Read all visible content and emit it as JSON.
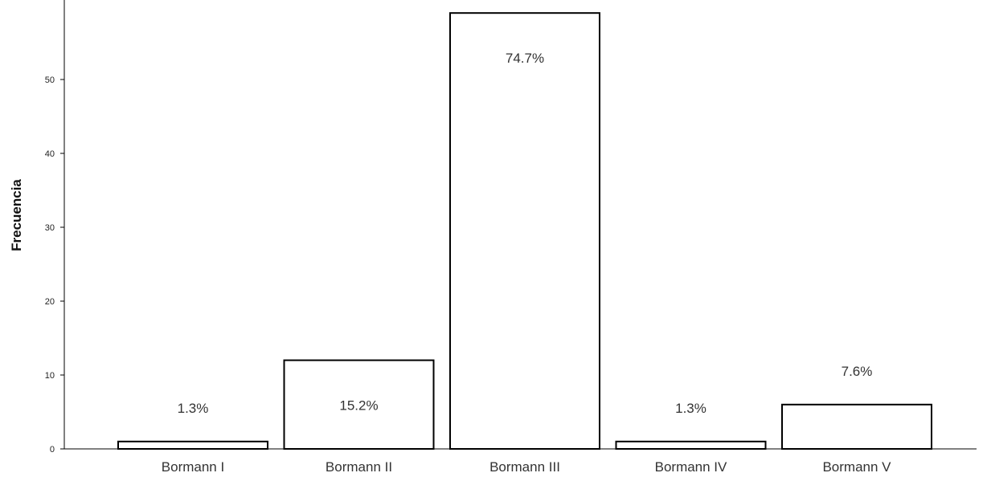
{
  "chart_data": {
    "type": "bar",
    "ylabel": "Frecuencia",
    "xlabel": "",
    "categories": [
      "Bormann I",
      "Bormann II",
      "Bormann III",
      "Bormann IV",
      "Bormann V"
    ],
    "values": [
      1,
      12,
      59,
      1,
      6
    ],
    "data_labels": [
      "1.3%",
      "15.2%",
      "74.7%",
      "1.3%",
      "7.6%"
    ],
    "yticks": [
      0,
      10,
      20,
      30,
      40,
      50
    ],
    "ylim": [
      0,
      60
    ],
    "grid": false,
    "bar_fill": "#ffffff",
    "bar_stroke": "#000000"
  }
}
